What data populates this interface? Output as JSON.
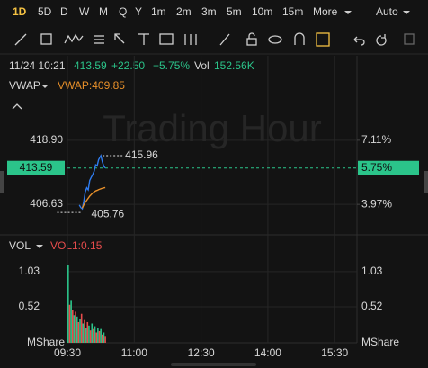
{
  "toolbar": {
    "timeframes": [
      "1D",
      "5D",
      "D",
      "W",
      "M",
      "Q",
      "Y",
      "1m",
      "2m",
      "3m",
      "5m",
      "10m",
      "15m"
    ],
    "more": "More",
    "scale": "Auto"
  },
  "header": {
    "time": "11/24 10:21",
    "price": "413.59",
    "change": "+22.50",
    "change_pct": "+5.75%",
    "vol_label": "Vol",
    "vol": "152.56K"
  },
  "chart_data": [
    {
      "type": "line",
      "watermark": "Trading Hour",
      "indicator_value_label": "VWAP:409.85",
      "x": [
        16,
        18,
        20,
        22,
        24,
        26,
        28,
        30,
        32,
        34,
        36,
        38,
        40,
        42,
        44,
        45,
        47,
        49,
        51
      ],
      "series": [
        {
          "color": "#2f7cf0",
          "values": [
            406.5,
            406.0,
            405.76,
            407.2,
            409.0,
            409.8,
            409.4,
            411.2,
            411.8,
            412.3,
            413.0,
            414.2,
            414.0,
            415.2,
            415.7,
            415.96,
            414.8,
            413.9,
            413.59
          ]
        },
        {
          "name": "VWAP",
          "color": "#e8902a",
          "values": [
            null,
            null,
            405.9,
            406.5,
            407.0,
            407.4,
            407.8,
            408.2,
            408.5,
            408.8,
            409.0,
            409.2,
            409.3,
            409.45,
            409.55,
            409.6,
            409.7,
            409.78,
            409.85
          ]
        }
      ],
      "xlim": [
        0,
        390
      ],
      "ylim": [
        401.3,
        430.6
      ],
      "yticks": [
        {
          "value": 418.9,
          "label": "418.90"
        },
        406.63
      ],
      "y2lim": [
        2.61,
        10.1
      ],
      "y2ticks": [
        7.11,
        {
          "value": 3.97,
          "label": "3.97%"
        }
      ],
      "y2tick_labels": [
        "7.11%"
      ],
      "last_price": {
        "value": 413.59,
        "label": "413.59",
        "pct": 5.75,
        "pct_label": "5.75%"
      },
      "high": 415.96,
      "low": 405.76,
      "grid": true
    },
    {
      "type": "bar",
      "indicator": "VOL",
      "indicator_value_label": "VOL1:0.15",
      "unit": "MShare",
      "x": [
        1,
        3,
        5,
        7,
        9,
        11,
        13,
        15,
        17,
        19,
        21,
        23,
        25,
        27,
        29,
        31,
        33,
        35,
        37,
        39,
        41,
        43,
        45,
        47,
        49,
        51
      ],
      "values": [
        1.12,
        0.55,
        0.62,
        0.48,
        0.4,
        0.45,
        0.38,
        0.3,
        0.35,
        0.42,
        0.28,
        0.33,
        0.22,
        0.3,
        0.25,
        0.18,
        0.28,
        0.2,
        0.24,
        0.15,
        0.22,
        0.17,
        0.2,
        0.12,
        0.15,
        0.1
      ],
      "colors": [
        "#2bc48a",
        "#e84c4c",
        "#2bc48a",
        "#e84c4c",
        "#2bc48a",
        "#e84c4c",
        "#2bc48a",
        "#e84c4c",
        "#2bc48a",
        "#e84c4c",
        "#2bc48a",
        "#e84c4c",
        "#2bc48a",
        "#e84c4c",
        "#2bc48a",
        "#e84c4c",
        "#2bc48a",
        "#e84c4c",
        "#2bc48a",
        "#e84c4c",
        "#2bc48a",
        "#e84c4c",
        "#2bc48a",
        "#e84c4c",
        "#2bc48a",
        "#e84c4c"
      ],
      "xlim": [
        0,
        390
      ],
      "ylim": [
        0,
        1.51
      ],
      "yticks": [
        0.52,
        1.03
      ],
      "xticks": [
        {
          "value": 0,
          "label": "09:30"
        },
        {
          "value": 90,
          "label": "11:00"
        },
        {
          "value": 180,
          "label": "12:30"
        },
        {
          "value": 270,
          "label": "14:00"
        },
        {
          "value": 360,
          "label": "15:30"
        }
      ],
      "grid": true
    }
  ]
}
